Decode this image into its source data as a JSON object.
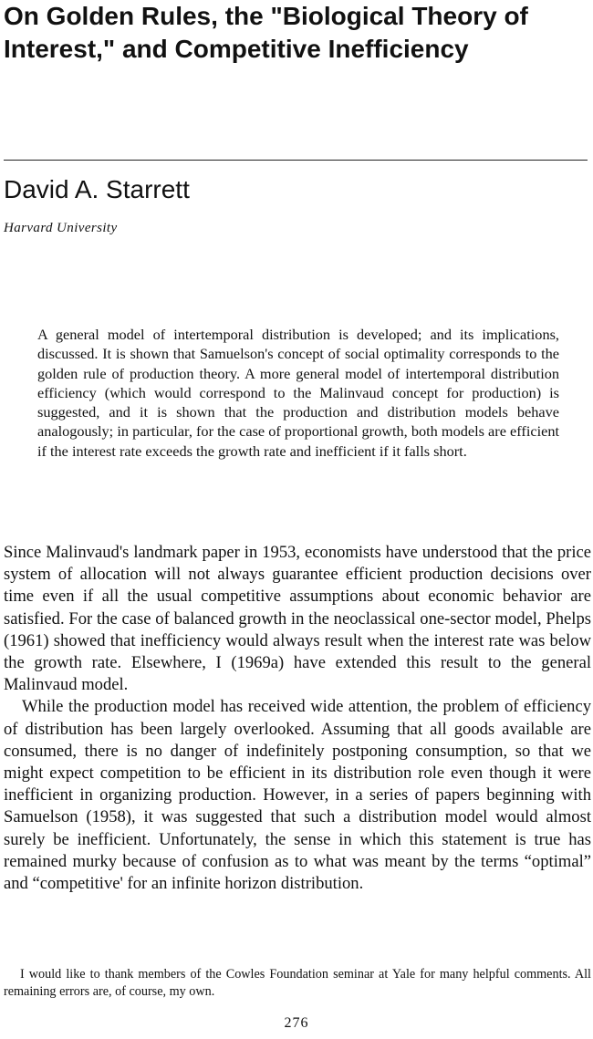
{
  "article": {
    "title": "On Golden Rules, the \"Biological Theory of Interest,\" and Competitive Inefficiency",
    "author": "David A. Starrett",
    "affiliation": "Harvard University"
  },
  "abstract": "A general model of intertemporal distribution is developed; and its implications, discussed. It is shown that Samuelson's concept of social optimality corresponds to the golden rule of production theory. A more general model of intertemporal distribution efficiency (which would correspond to the Malinvaud concept for production) is suggested, and it is shown that the production and distribution models behave analogously; in particular, for the case of proportional growth, both models are efficient if the interest rate exceeds the growth rate and inefficient if it falls short.",
  "body": {
    "paragraphs": [
      "Since Malinvaud's landmark paper in 1953, economists have understood that the price system of allocation will not always guarantee efficient production decisions over time even if all the usual competitive assumptions about economic behavior are satisfied. For the case of balanced growth in the neoclassical one-sector model, Phelps (1961) showed that inefficiency would always result when the interest rate was below the growth rate. Elsewhere, I (1969a) have extended this result to the general Malinvaud model.",
      "While the production model has received wide attention, the problem of efficiency of distribution has been largely overlooked. Assuming that all goods available are consumed, there is no danger of indefinitely postponing consumption, so that we might expect competition to be efficient in its distribution role even though it were inefficient in organizing production. However, in a series of papers beginning with Samuelson (1958), it was suggested that such a distribution model would almost surely be inefficient. Unfortunately, the sense in which this statement is true has remained murky because of confusion as to what was meant by the terms “optimal” and “competitive' for an infinite horizon distribution."
    ]
  },
  "footnote": "I would like to thank members of the Cowles Foundation seminar at Yale for many helpful comments. All remaining errors are, of course, my own.",
  "page_number": "276"
}
